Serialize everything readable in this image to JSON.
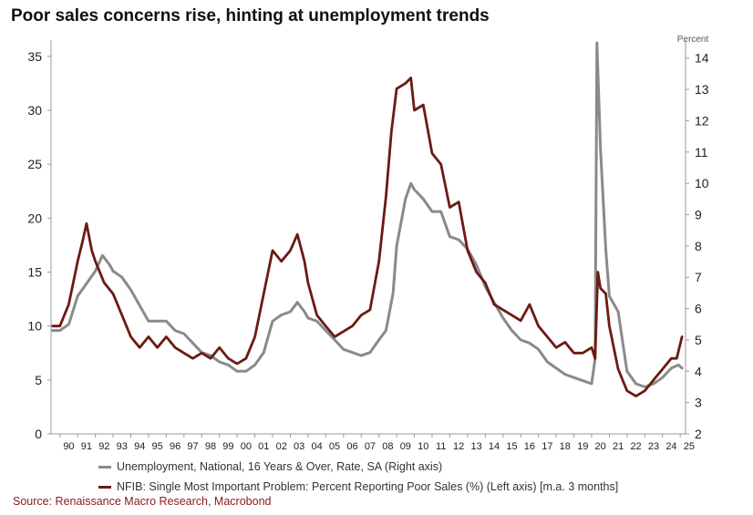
{
  "title": "Poor sales concerns rise, hinting at unemployment trends",
  "source": "Source: Renaissance Macro Research, Macrobond",
  "colors": {
    "unemployment": "#8a8a8a",
    "poor_sales": "#6b1a12",
    "axis": "#9a9a9a",
    "source_text": "#8b1a1a"
  },
  "chart_data": {
    "type": "line",
    "left_axis": {
      "min": 0,
      "max": 36,
      "ticks": [
        0,
        5,
        10,
        15,
        20,
        25,
        30,
        35
      ]
    },
    "right_axis": {
      "min": 2,
      "max": 14.4,
      "ticks": [
        2,
        3,
        4,
        5,
        6,
        7,
        8,
        9,
        10,
        11,
        12,
        13,
        14
      ],
      "unit_label": "Percent"
    },
    "x_axis": {
      "min": 1989.5,
      "max": 2025.3,
      "tick_labels": [
        "90",
        "91",
        "92",
        "93",
        "94",
        "95",
        "96",
        "97",
        "98",
        "99",
        "00",
        "01",
        "02",
        "03",
        "04",
        "05",
        "06",
        "07",
        "08",
        "09",
        "10",
        "11",
        "12",
        "13",
        "14",
        "15",
        "16",
        "17",
        "18",
        "19",
        "20",
        "21",
        "22",
        "23",
        "24",
        "25"
      ]
    },
    "series": [
      {
        "name": "Unemployment, National, 16 Years & Over, Rate, SA (Right axis)",
        "axis": "right",
        "points": [
          [
            1989.6,
            5.3
          ],
          [
            1990,
            5.3
          ],
          [
            1990.5,
            5.5
          ],
          [
            1991,
            6.4
          ],
          [
            1991.5,
            6.8
          ],
          [
            1992,
            7.2
          ],
          [
            1992.4,
            7.7
          ],
          [
            1992.8,
            7.4
          ],
          [
            1993,
            7.2
          ],
          [
            1993.5,
            7.0
          ],
          [
            1994,
            6.6
          ],
          [
            1994.5,
            6.1
          ],
          [
            1995,
            5.6
          ],
          [
            1995.5,
            5.6
          ],
          [
            1996,
            5.6
          ],
          [
            1996.5,
            5.3
          ],
          [
            1997,
            5.2
          ],
          [
            1997.5,
            4.9
          ],
          [
            1998,
            4.6
          ],
          [
            1998.5,
            4.5
          ],
          [
            1999,
            4.3
          ],
          [
            1999.5,
            4.2
          ],
          [
            2000,
            4.0
          ],
          [
            2000.5,
            4.0
          ],
          [
            2001,
            4.2
          ],
          [
            2001.5,
            4.6
          ],
          [
            2002,
            5.6
          ],
          [
            2002.5,
            5.8
          ],
          [
            2003,
            5.9
          ],
          [
            2003.4,
            6.2
          ],
          [
            2003.8,
            5.9
          ],
          [
            2004,
            5.7
          ],
          [
            2004.5,
            5.6
          ],
          [
            2005,
            5.3
          ],
          [
            2005.5,
            5.0
          ],
          [
            2006,
            4.7
          ],
          [
            2006.5,
            4.6
          ],
          [
            2007,
            4.5
          ],
          [
            2007.5,
            4.6
          ],
          [
            2008,
            5.0
          ],
          [
            2008.4,
            5.3
          ],
          [
            2008.8,
            6.5
          ],
          [
            2009,
            8.0
          ],
          [
            2009.5,
            9.5
          ],
          [
            2009.8,
            10.0
          ],
          [
            2010,
            9.8
          ],
          [
            2010.5,
            9.5
          ],
          [
            2011,
            9.1
          ],
          [
            2011.5,
            9.1
          ],
          [
            2012,
            8.3
          ],
          [
            2012.5,
            8.2
          ],
          [
            2013,
            7.9
          ],
          [
            2013.5,
            7.4
          ],
          [
            2014,
            6.7
          ],
          [
            2014.5,
            6.2
          ],
          [
            2015,
            5.7
          ],
          [
            2015.5,
            5.3
          ],
          [
            2016,
            5.0
          ],
          [
            2016.5,
            4.9
          ],
          [
            2017,
            4.7
          ],
          [
            2017.5,
            4.3
          ],
          [
            2018,
            4.1
          ],
          [
            2018.5,
            3.9
          ],
          [
            2019,
            3.8
          ],
          [
            2019.5,
            3.7
          ],
          [
            2020,
            3.6
          ],
          [
            2020.2,
            4.4
          ],
          [
            2020.3,
            14.7
          ],
          [
            2020.5,
            11.1
          ],
          [
            2020.8,
            7.9
          ],
          [
            2021,
            6.4
          ],
          [
            2021.5,
            5.9
          ],
          [
            2022,
            4.0
          ],
          [
            2022.5,
            3.6
          ],
          [
            2023,
            3.5
          ],
          [
            2023.5,
            3.6
          ],
          [
            2024,
            3.8
          ],
          [
            2024.5,
            4.1
          ],
          [
            2024.9,
            4.2
          ],
          [
            2025.1,
            4.1
          ]
        ]
      },
      {
        "name": "NFIB: Single Most Important Problem: Percent Reporting Poor Sales (%) (Left axis) [m.a. 3 months]",
        "axis": "left",
        "points": [
          [
            1989.6,
            10
          ],
          [
            1990,
            10
          ],
          [
            1990.5,
            12
          ],
          [
            1991,
            16
          ],
          [
            1991.3,
            18
          ],
          [
            1991.5,
            19.5
          ],
          [
            1991.8,
            17
          ],
          [
            1992,
            16
          ],
          [
            1992.5,
            14
          ],
          [
            1993,
            13
          ],
          [
            1993.5,
            11
          ],
          [
            1994,
            9
          ],
          [
            1994.5,
            8
          ],
          [
            1995,
            9
          ],
          [
            1995.5,
            8
          ],
          [
            1996,
            9
          ],
          [
            1996.5,
            8
          ],
          [
            1997,
            7.5
          ],
          [
            1997.5,
            7
          ],
          [
            1998,
            7.5
          ],
          [
            1998.5,
            7
          ],
          [
            1999,
            8
          ],
          [
            1999.5,
            7
          ],
          [
            2000,
            6.5
          ],
          [
            2000.5,
            7
          ],
          [
            2001,
            9
          ],
          [
            2001.5,
            13
          ],
          [
            2002,
            17
          ],
          [
            2002.5,
            16
          ],
          [
            2003,
            17
          ],
          [
            2003.4,
            18.5
          ],
          [
            2003.8,
            16
          ],
          [
            2004,
            14
          ],
          [
            2004.5,
            11
          ],
          [
            2005,
            10
          ],
          [
            2005.5,
            9
          ],
          [
            2006,
            9.5
          ],
          [
            2006.5,
            10
          ],
          [
            2007,
            11
          ],
          [
            2007.5,
            11.5
          ],
          [
            2008,
            16
          ],
          [
            2008.4,
            22
          ],
          [
            2008.7,
            28
          ],
          [
            2009,
            32
          ],
          [
            2009.5,
            32.5
          ],
          [
            2009.8,
            33
          ],
          [
            2010,
            30
          ],
          [
            2010.5,
            30.5
          ],
          [
            2011,
            26
          ],
          [
            2011.5,
            25
          ],
          [
            2012,
            21
          ],
          [
            2012.5,
            21.5
          ],
          [
            2013,
            17
          ],
          [
            2013.5,
            15
          ],
          [
            2014,
            14
          ],
          [
            2014.5,
            12
          ],
          [
            2015,
            11.5
          ],
          [
            2015.5,
            11
          ],
          [
            2016,
            10.5
          ],
          [
            2016.5,
            12
          ],
          [
            2017,
            10
          ],
          [
            2017.5,
            9
          ],
          [
            2018,
            8
          ],
          [
            2018.5,
            8.5
          ],
          [
            2019,
            7.5
          ],
          [
            2019.5,
            7.5
          ],
          [
            2020,
            8
          ],
          [
            2020.2,
            7
          ],
          [
            2020.35,
            15
          ],
          [
            2020.5,
            13.5
          ],
          [
            2020.8,
            13
          ],
          [
            2021,
            10
          ],
          [
            2021.5,
            6
          ],
          [
            2022,
            4
          ],
          [
            2022.5,
            3.5
          ],
          [
            2023,
            4
          ],
          [
            2023.5,
            5
          ],
          [
            2024,
            6
          ],
          [
            2024.5,
            7
          ],
          [
            2024.8,
            7
          ],
          [
            2025.1,
            9
          ]
        ]
      }
    ]
  }
}
